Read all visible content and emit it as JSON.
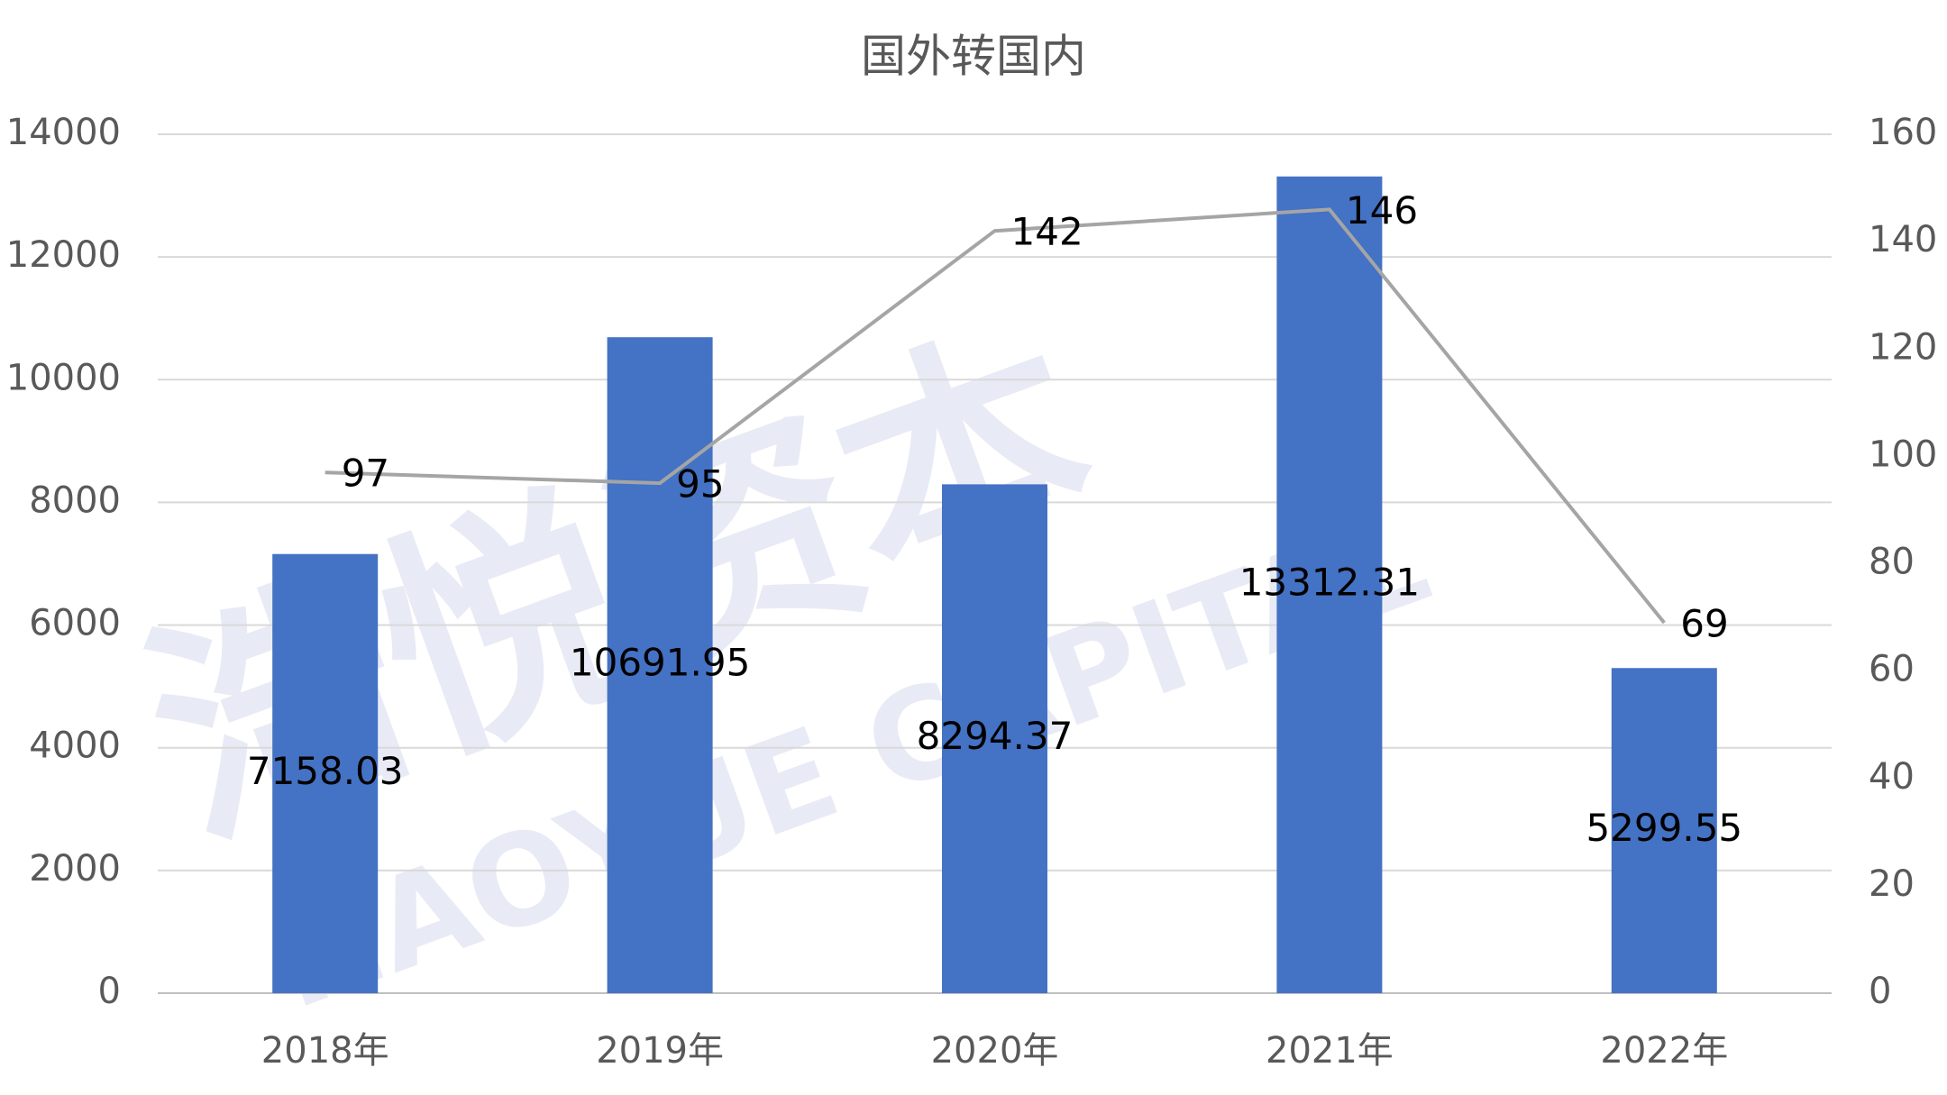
{
  "chart_data": {
    "type": "bar-line",
    "title": "国外转国内",
    "watermark": "浩悦资本",
    "watermark_sub": "HAOYUE CAPITAL",
    "categories": [
      "2018年",
      "2019年",
      "2020年",
      "2021年",
      "2022年"
    ],
    "series": [
      {
        "type": "bar",
        "color": "#4472c4",
        "values": [
          7158.03,
          10691.95,
          8294.37,
          13312.31,
          5299.55
        ]
      },
      {
        "type": "line",
        "axis": "y2",
        "color": "#a5a5a5",
        "values": [
          97,
          95,
          142,
          146,
          69
        ]
      }
    ],
    "ylim": [
      0,
      14000
    ],
    "yticks": [
      0,
      2000,
      4000,
      6000,
      8000,
      10000,
      12000,
      14000
    ],
    "y2lim": [
      0,
      160
    ],
    "y2ticks": [
      0,
      20,
      40,
      60,
      80,
      100,
      120,
      140,
      160
    ],
    "grid": true
  }
}
